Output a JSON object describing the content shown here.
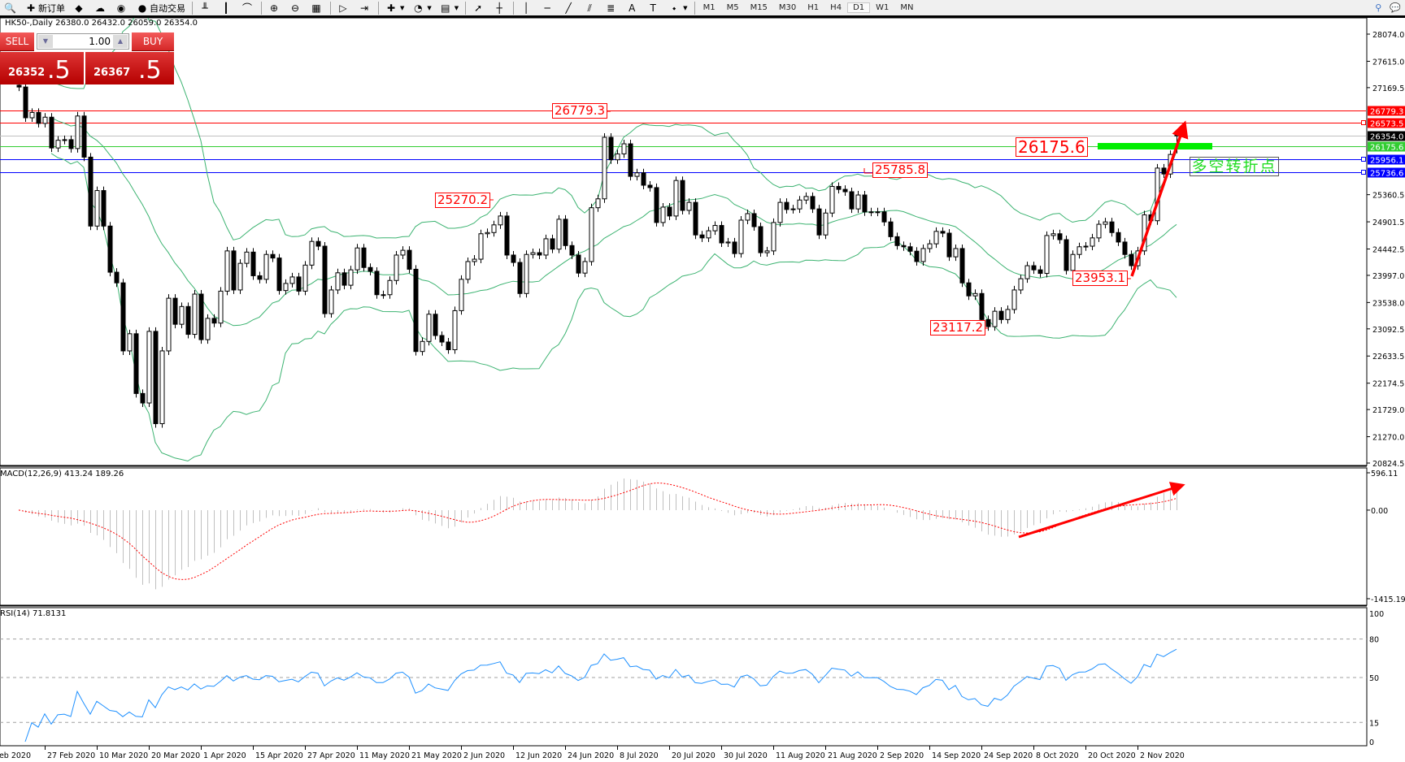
{
  "toolbar": {
    "items": [
      {
        "icon": "print-preview-icon",
        "glyph": "🔍"
      },
      {
        "icon": "new-order-icon",
        "glyph": "✚",
        "label": "新订单"
      },
      {
        "icon": "metaeditor-icon",
        "glyph": "◆"
      },
      {
        "icon": "history-center-icon",
        "glyph": "☁"
      },
      {
        "icon": "signals-icon",
        "glyph": "◉"
      },
      {
        "icon": "auto-trading-icon",
        "glyph": "●",
        "label": "自动交易"
      },
      {
        "sep": true
      },
      {
        "icon": "bar-chart-icon",
        "glyph": "╨"
      },
      {
        "icon": "candlestick-icon",
        "glyph": "┃"
      },
      {
        "icon": "line-chart-icon",
        "glyph": "⌒"
      },
      {
        "sep": true
      },
      {
        "icon": "zoom-in-icon",
        "glyph": "⊕"
      },
      {
        "icon": "zoom-out-icon",
        "glyph": "⊖"
      },
      {
        "icon": "tile-windows-icon",
        "glyph": "▦"
      },
      {
        "sep": true
      },
      {
        "icon": "auto-scroll-icon",
        "glyph": "▷"
      },
      {
        "icon": "chart-shift-icon",
        "glyph": "⇥"
      },
      {
        "sep": true
      },
      {
        "icon": "indicators-icon",
        "glyph": "✚",
        "dropdown": true
      },
      {
        "icon": "periods-icon",
        "glyph": "◔",
        "dropdown": true
      },
      {
        "icon": "templates-icon",
        "glyph": "▤",
        "dropdown": true
      },
      {
        "sep": true
      },
      {
        "icon": "cursor-icon",
        "glyph": "➚"
      },
      {
        "icon": "crosshair-icon",
        "glyph": "┼"
      },
      {
        "sep": true
      },
      {
        "icon": "vertical-line-icon",
        "glyph": "│"
      },
      {
        "icon": "horizontal-line-icon",
        "glyph": "─"
      },
      {
        "icon": "trendline-icon",
        "glyph": "╱"
      },
      {
        "icon": "equidistant-channel-icon",
        "glyph": "⫽"
      },
      {
        "icon": "fibonacci-icon",
        "glyph": "≣"
      },
      {
        "icon": "text-icon",
        "glyph": "A"
      },
      {
        "icon": "text-label-icon",
        "glyph": "T"
      },
      {
        "icon": "arrows-icon",
        "glyph": "⬩",
        "dropdown": true
      },
      {
        "sep": true
      }
    ],
    "timeframes": [
      "M1",
      "M5",
      "M15",
      "M30",
      "H1",
      "H4",
      "D1",
      "W1",
      "MN"
    ],
    "active_timeframe": "D1",
    "right_icons": [
      "search-icon",
      "chat-icon"
    ]
  },
  "header": {
    "symbol": "HK50-,Daily",
    "ohlc": "26380.0 26432.0 26059.0 26354.0"
  },
  "trade_panel": {
    "sell_label": "SELL",
    "buy_label": "BUY",
    "lot": "1.00",
    "sell_price_main": "26352",
    "sell_price_big": ".5",
    "buy_price_main": "26367",
    "buy_price_big": ".5",
    "colors": {
      "button": "#e23a3a",
      "price": "#c40808"
    }
  },
  "annotations": {
    "high_jul": "26779.3",
    "high_jun": "25270.2",
    "high_aug": "25785.8",
    "low_sep": "23117.2",
    "pivot": "26175.6",
    "low_oct": "23953.1",
    "turning_point": "多空转折点"
  },
  "levels": [
    {
      "price": 26779.3,
      "label": "26779.3",
      "color": "#ff0000"
    },
    {
      "price": 26573.5,
      "label": "26573.5",
      "color": "#ff0000"
    },
    {
      "price": 26354.0,
      "label": "26354.0",
      "color": "#c0c0c0",
      "label_bg": "#000000"
    },
    {
      "price": 26175.6,
      "label": "26175.6",
      "color": "#32cd32"
    },
    {
      "price": 25956.1,
      "label": "25956.1",
      "color": "#0000ff"
    },
    {
      "price": 25736.6,
      "label": "25736.6",
      "color": "#0000ff"
    }
  ],
  "chart_data": [
    {
      "type": "candlestick",
      "title": "HK50-,Daily",
      "ylim": [
        20824.5,
        28074.0
      ],
      "price_axis_ticks": [
        "28074.0",
        "27615.0",
        "27169.5",
        "25360.5",
        "24901.5",
        "24442.5",
        "23997.0",
        "23538.0",
        "23092.5",
        "22633.5",
        "22174.5",
        "21729.0",
        "21270.0",
        "20824.5"
      ],
      "x_axis_labels": [
        "Feb 2020",
        "27 Feb 2020",
        "10 Mar 2020",
        "20 Mar 2020",
        "1 Apr 2020",
        "15 Apr 2020",
        "27 Apr 2020",
        "11 May 2020",
        "21 May 2020",
        "2 Jun 2020",
        "12 Jun 2020",
        "24 Jun 2020",
        "8 Jul 2020",
        "20 Jul 2020",
        "30 Jul 2020",
        "11 Aug 2020",
        "21 Aug 2020",
        "2 Sep 2020",
        "14 Sep 2020",
        "24 Sep 2020",
        "8 Oct 2020",
        "20 Oct 2020",
        "2 Nov 2020"
      ],
      "last_bar": {
        "open": 26380.0,
        "high": 26432.0,
        "low": 26059.0,
        "close": 26354.0
      },
      "close": [
        27180,
        26660,
        26750,
        26565,
        26670,
        26150,
        26280,
        26290,
        26140,
        26690,
        25995,
        24830,
        25430,
        24830,
        24050,
        23870,
        22720,
        23010,
        22000,
        21840,
        23050,
        21490,
        22720,
        23610,
        23170,
        23470,
        23000,
        23680,
        22910,
        23270,
        23190,
        23730,
        24410,
        23750,
        24200,
        24390,
        23990,
        23930,
        24350,
        24290,
        23740,
        23860,
        23970,
        23730,
        24170,
        24570,
        24490,
        23350,
        23750,
        24040,
        23830,
        24090,
        24460,
        24130,
        24065,
        23670,
        23670,
        23910,
        24340,
        24420,
        24100,
        22710,
        22880,
        23340,
        22980,
        22870,
        22740,
        23400,
        23930,
        24230,
        24270,
        24700,
        24720,
        24850,
        25000,
        24340,
        24215,
        23690,
        24350,
        24380,
        24340,
        24615,
        24440,
        24945,
        24500,
        24340,
        24035,
        24230,
        25140,
        25290,
        26330,
        25950,
        26050,
        26220,
        25670,
        25730,
        25520,
        25480,
        24890,
        25150,
        25000,
        25600,
        25095,
        25230,
        24680,
        24630,
        24750,
        24840,
        24545,
        24560,
        24365,
        24930,
        25040,
        24820,
        24380,
        24410,
        24890,
        25230,
        25110,
        25120,
        25270,
        25330,
        25120,
        24680,
        25050,
        25500,
        25450,
        25410,
        25120,
        25355,
        25070,
        25065,
        25070,
        24900,
        24650,
        24500,
        24480,
        24405,
        24230,
        24450,
        24530,
        24740,
        24710,
        24310,
        24450,
        23870,
        23650,
        23690,
        23250,
        23130,
        23390,
        23250,
        23420,
        23750,
        23940,
        24160,
        24090,
        24030,
        24670,
        24700,
        24600,
        24080,
        24350,
        24480,
        24490,
        24630,
        24860,
        24900,
        24720,
        24560,
        24350,
        24160,
        24410,
        25020,
        24920,
        25810,
        25710,
        26040,
        26354
      ],
      "overlays": {
        "bollinger": {
          "period": 20,
          "deviations": 2,
          "color": "#3cb371"
        }
      },
      "colors": {
        "bull": "#ffffff",
        "bear": "#000000",
        "outline": "#000000"
      }
    },
    {
      "type": "bar",
      "title": "MACD(12,26,9) 413.24 189.26",
      "params": [
        12,
        26,
        9
      ],
      "values_shown": [
        413.24,
        189.26
      ],
      "ylim": [
        -1415.19,
        596.11
      ],
      "axis_labels": [
        "596.11",
        "0.00",
        "-1415.19"
      ],
      "colors": {
        "histogram": "#c0c0c0",
        "signal": "#ff0000"
      }
    },
    {
      "type": "line",
      "title": "RSI(14) 71.8131",
      "period": 14,
      "value_shown": 71.8131,
      "ylim": [
        0,
        100
      ],
      "levels": [
        80,
        50,
        15
      ],
      "axis_labels": [
        "100",
        "80",
        "50",
        "15",
        "0"
      ],
      "colors": {
        "line": "#1e90ff",
        "levels": "#a0a0a0"
      }
    }
  ]
}
